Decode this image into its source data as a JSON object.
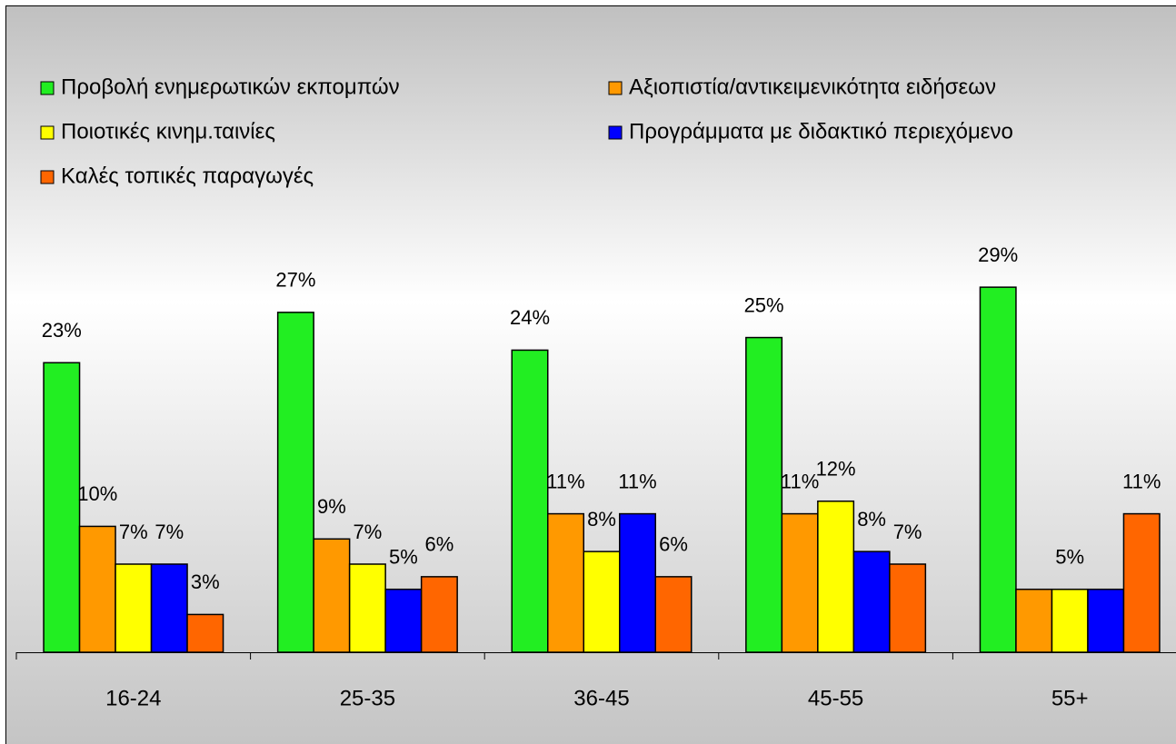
{
  "chart_data": {
    "type": "bar",
    "categories": [
      "16-24",
      "25-35",
      "36-45",
      "45-55",
      "55+"
    ],
    "series": [
      {
        "name": "Προβολή ενημερωτικών εκπομπών",
        "color": "#22ee22",
        "values": [
          23,
          27,
          24,
          25,
          29
        ],
        "value_labels": [
          "23%",
          "27%",
          "24%",
          "25%",
          "29%"
        ]
      },
      {
        "name": "Αξιοπιστία/αντικειμενικότητα ειδήσεων",
        "color": "#ff9900",
        "values": [
          10,
          9,
          11,
          11,
          5
        ],
        "value_labels": [
          "10%",
          "9%",
          "11%",
          "11%",
          null
        ]
      },
      {
        "name": "Ποιοτικές κινημ.ταινίες",
        "color": "#ffff00",
        "values": [
          7,
          7,
          8,
          12,
          5
        ],
        "value_labels": [
          "7%",
          "7%",
          "8%",
          "12%",
          "5%"
        ]
      },
      {
        "name": "Προγράμματα με διδακτικό περιεχόμενο",
        "color": "#0000ff",
        "values": [
          7,
          5,
          11,
          8,
          5
        ],
        "value_labels": [
          "7%",
          "5%",
          "11%",
          "8%",
          null
        ]
      },
      {
        "name": "Καλές τοπικές παραγωγές",
        "color": "#ff6600",
        "values": [
          3,
          6,
          6,
          7,
          11
        ],
        "value_labels": [
          "3%",
          "6%",
          "6%",
          "7%",
          "11%"
        ]
      }
    ],
    "ylim": [
      0,
      35
    ],
    "legend": "top"
  }
}
